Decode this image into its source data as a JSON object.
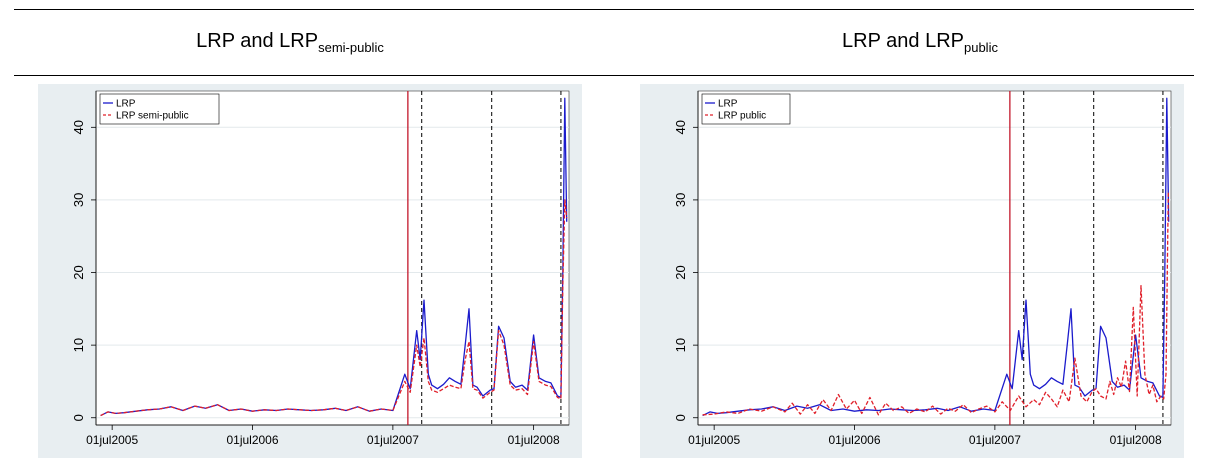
{
  "colors": {
    "frame_bg": "#e8eef1",
    "plot_bg": "#ffffff",
    "lrp": "#1b1bcc",
    "second": "#e0202a",
    "event_solid": "#c2182b",
    "event_dashed": "#000000"
  },
  "panels": [
    {
      "title_main": "LRP and LRP",
      "title_sub": "semi-public"
    },
    {
      "title_main": "LRP and LRP",
      "title_sub": "public"
    }
  ],
  "chart_data": [
    {
      "type": "line",
      "title": "LRP and LRP semi-public",
      "xlabel": "",
      "ylabel": "",
      "x_ticks": [
        "01jul2005",
        "01jul2006",
        "01jul2007",
        "01jul2008"
      ],
      "y_ticks": [
        0,
        10,
        20,
        30,
        40
      ],
      "xlim": [
        "2005-05-20",
        "2008-10-01"
      ],
      "ylim": [
        -1,
        45
      ],
      "grid": true,
      "legend_position": "top-left",
      "event_lines": [
        {
          "date": "2007-08-09",
          "style": "solid"
        },
        {
          "date": "2007-09-14",
          "style": "dashed"
        },
        {
          "date": "2008-03-14",
          "style": "dashed"
        },
        {
          "date": "2008-09-10",
          "style": "dashed"
        }
      ],
      "series": [
        {
          "name": "LRP",
          "style": "solid",
          "x": [
            "2005-06-01",
            "2005-06-20",
            "2005-07-10",
            "2005-08-01",
            "2005-09-01",
            "2005-10-01",
            "2005-11-01",
            "2005-12-01",
            "2006-01-01",
            "2006-02-01",
            "2006-03-01",
            "2006-04-01",
            "2006-05-01",
            "2006-06-01",
            "2006-07-01",
            "2006-08-01",
            "2006-09-01",
            "2006-10-01",
            "2006-11-01",
            "2006-12-01",
            "2007-01-01",
            "2007-02-01",
            "2007-03-01",
            "2007-04-01",
            "2007-05-01",
            "2007-06-01",
            "2007-07-01",
            "2007-08-01",
            "2007-08-15",
            "2007-09-01",
            "2007-09-10",
            "2007-09-20",
            "2007-10-01",
            "2007-10-10",
            "2007-10-25",
            "2007-11-10",
            "2007-11-25",
            "2007-12-10",
            "2007-12-25",
            "2008-01-05",
            "2008-01-15",
            "2008-01-25",
            "2008-02-05",
            "2008-02-20",
            "2008-03-10",
            "2008-03-20",
            "2008-04-01",
            "2008-04-15",
            "2008-05-01",
            "2008-05-15",
            "2008-06-01",
            "2008-06-15",
            "2008-07-01",
            "2008-07-15",
            "2008-08-01",
            "2008-08-15",
            "2008-09-01",
            "2008-09-10",
            "2008-09-15",
            "2008-09-20",
            "2008-09-25"
          ],
          "values": [
            0.3,
            0.8,
            0.6,
            0.7,
            0.9,
            1.1,
            1.2,
            1.5,
            1.0,
            1.6,
            1.3,
            1.8,
            1.0,
            1.2,
            0.9,
            1.1,
            1.0,
            1.2,
            1.1,
            1.0,
            1.1,
            1.3,
            1.0,
            1.5,
            0.9,
            1.2,
            1.0,
            6.0,
            4.0,
            12.0,
            8.0,
            16.2,
            6.0,
            4.5,
            4.0,
            4.6,
            5.5,
            5.0,
            4.6,
            10.0,
            15.0,
            4.5,
            4.2,
            3.0,
            3.8,
            4.0,
            12.6,
            11.0,
            5.0,
            4.2,
            4.5,
            3.8,
            11.4,
            5.5,
            5.0,
            4.8,
            3.0,
            2.8,
            20.0,
            44.0,
            27.0
          ]
        },
        {
          "name": "LRP semi-public",
          "style": "dashed",
          "x": [
            "2005-06-01",
            "2005-06-20",
            "2005-07-10",
            "2005-08-01",
            "2005-09-01",
            "2005-10-01",
            "2005-11-01",
            "2005-12-01",
            "2006-01-01",
            "2006-02-01",
            "2006-03-01",
            "2006-04-01",
            "2006-05-01",
            "2006-06-01",
            "2006-07-01",
            "2006-08-01",
            "2006-09-01",
            "2006-10-01",
            "2006-11-01",
            "2006-12-01",
            "2007-01-01",
            "2007-02-01",
            "2007-03-01",
            "2007-04-01",
            "2007-05-01",
            "2007-06-01",
            "2007-07-01",
            "2007-08-01",
            "2007-08-15",
            "2007-09-01",
            "2007-09-10",
            "2007-09-20",
            "2007-10-01",
            "2007-10-10",
            "2007-10-25",
            "2007-11-10",
            "2007-11-25",
            "2007-12-10",
            "2007-12-25",
            "2008-01-05",
            "2008-01-15",
            "2008-01-25",
            "2008-02-05",
            "2008-02-20",
            "2008-03-10",
            "2008-03-20",
            "2008-04-01",
            "2008-04-15",
            "2008-05-01",
            "2008-05-15",
            "2008-06-01",
            "2008-06-15",
            "2008-07-01",
            "2008-07-15",
            "2008-08-01",
            "2008-08-15",
            "2008-09-01",
            "2008-09-10",
            "2008-09-15",
            "2008-09-20",
            "2008-09-25"
          ],
          "values": [
            0.3,
            0.8,
            0.6,
            0.7,
            0.9,
            1.1,
            1.2,
            1.5,
            1.0,
            1.6,
            1.3,
            1.8,
            1.0,
            1.2,
            0.9,
            1.1,
            1.0,
            1.2,
            1.1,
            1.0,
            1.1,
            1.3,
            1.0,
            1.5,
            0.9,
            1.2,
            1.0,
            5.0,
            3.5,
            10.0,
            7.0,
            11.0,
            5.0,
            3.8,
            3.5,
            4.0,
            4.5,
            4.2,
            4.0,
            8.0,
            10.5,
            4.0,
            3.8,
            2.7,
            3.5,
            3.8,
            12.0,
            10.0,
            4.5,
            3.8,
            4.0,
            3.2,
            10.5,
            5.0,
            4.5,
            4.3,
            2.8,
            2.6,
            18.0,
            30.0,
            27.5
          ]
        }
      ]
    },
    {
      "type": "line",
      "title": "LRP and LRP public",
      "xlabel": "",
      "ylabel": "",
      "x_ticks": [
        "01jul2005",
        "01jul2006",
        "01jul2007",
        "01jul2008"
      ],
      "y_ticks": [
        0,
        10,
        20,
        30,
        40
      ],
      "xlim": [
        "2005-05-20",
        "2008-10-01"
      ],
      "ylim": [
        -1,
        45
      ],
      "grid": true,
      "legend_position": "top-left",
      "event_lines": [
        {
          "date": "2007-08-09",
          "style": "solid"
        },
        {
          "date": "2007-09-14",
          "style": "dashed"
        },
        {
          "date": "2008-03-14",
          "style": "dashed"
        },
        {
          "date": "2008-09-10",
          "style": "dashed"
        }
      ],
      "series": [
        {
          "name": "LRP",
          "style": "solid",
          "x": [
            "2005-06-01",
            "2005-06-20",
            "2005-07-10",
            "2005-08-01",
            "2005-09-01",
            "2005-10-01",
            "2005-11-01",
            "2005-12-01",
            "2006-01-01",
            "2006-02-01",
            "2006-03-01",
            "2006-04-01",
            "2006-05-01",
            "2006-06-01",
            "2006-07-01",
            "2006-08-01",
            "2006-09-01",
            "2006-10-01",
            "2006-11-01",
            "2006-12-01",
            "2007-01-01",
            "2007-02-01",
            "2007-03-01",
            "2007-04-01",
            "2007-05-01",
            "2007-06-01",
            "2007-07-01",
            "2007-08-01",
            "2007-08-15",
            "2007-09-01",
            "2007-09-10",
            "2007-09-20",
            "2007-10-01",
            "2007-10-10",
            "2007-10-25",
            "2007-11-10",
            "2007-11-25",
            "2007-12-10",
            "2007-12-25",
            "2008-01-05",
            "2008-01-15",
            "2008-01-25",
            "2008-02-05",
            "2008-02-20",
            "2008-03-10",
            "2008-03-20",
            "2008-04-01",
            "2008-04-15",
            "2008-05-01",
            "2008-05-15",
            "2008-06-01",
            "2008-06-15",
            "2008-07-01",
            "2008-07-15",
            "2008-08-01",
            "2008-08-15",
            "2008-09-01",
            "2008-09-10",
            "2008-09-15",
            "2008-09-20",
            "2008-09-25"
          ],
          "values": [
            0.3,
            0.8,
            0.6,
            0.7,
            0.9,
            1.1,
            1.2,
            1.5,
            1.0,
            1.6,
            1.3,
            1.8,
            1.0,
            1.2,
            0.9,
            1.1,
            1.0,
            1.2,
            1.1,
            1.0,
            1.1,
            1.3,
            1.0,
            1.5,
            0.9,
            1.2,
            1.0,
            6.0,
            4.0,
            12.0,
            8.0,
            16.2,
            6.0,
            4.5,
            4.0,
            4.6,
            5.5,
            5.0,
            4.6,
            10.0,
            15.0,
            4.5,
            4.2,
            3.0,
            3.8,
            4.0,
            12.6,
            11.0,
            5.0,
            4.2,
            4.5,
            3.8,
            11.4,
            5.5,
            5.0,
            4.8,
            3.0,
            2.8,
            20.0,
            44.0,
            27.0
          ]
        },
        {
          "name": "LRP public",
          "style": "dashed",
          "x": [
            "2005-06-01",
            "2005-07-01",
            "2005-08-01",
            "2005-09-01",
            "2005-10-01",
            "2005-11-01",
            "2005-12-01",
            "2006-01-01",
            "2006-01-20",
            "2006-02-10",
            "2006-03-01",
            "2006-03-20",
            "2006-04-10",
            "2006-05-01",
            "2006-05-20",
            "2006-06-10",
            "2006-07-01",
            "2006-07-20",
            "2006-08-10",
            "2006-09-01",
            "2006-09-20",
            "2006-10-10",
            "2006-11-01",
            "2006-11-20",
            "2006-12-10",
            "2007-01-01",
            "2007-01-20",
            "2007-02-10",
            "2007-03-01",
            "2007-03-20",
            "2007-04-10",
            "2007-05-01",
            "2007-05-20",
            "2007-06-10",
            "2007-07-01",
            "2007-07-20",
            "2007-08-10",
            "2007-09-01",
            "2007-09-20",
            "2007-10-10",
            "2007-10-25",
            "2007-11-10",
            "2007-11-25",
            "2007-12-10",
            "2007-12-25",
            "2008-01-10",
            "2008-01-25",
            "2008-02-10",
            "2008-02-25",
            "2008-03-10",
            "2008-03-20",
            "2008-04-01",
            "2008-04-15",
            "2008-04-25",
            "2008-05-05",
            "2008-05-15",
            "2008-05-25",
            "2008-06-05",
            "2008-06-15",
            "2008-06-25",
            "2008-07-05",
            "2008-07-15",
            "2008-07-25",
            "2008-08-05",
            "2008-08-15",
            "2008-08-25",
            "2008-09-05",
            "2008-09-12",
            "2008-09-18",
            "2008-09-24"
          ],
          "values": [
            0.4,
            0.5,
            0.8,
            0.6,
            1.2,
            0.9,
            1.5,
            0.8,
            2.0,
            0.5,
            1.8,
            0.6,
            2.5,
            1.0,
            3.2,
            1.2,
            2.4,
            0.6,
            2.8,
            0.4,
            2.0,
            1.0,
            1.5,
            0.6,
            1.2,
            0.8,
            1.6,
            0.5,
            1.3,
            0.9,
            1.8,
            0.7,
            1.2,
            1.6,
            0.8,
            2.2,
            1.0,
            3.0,
            1.5,
            2.5,
            1.8,
            3.5,
            2.6,
            1.5,
            3.8,
            2.2,
            8.2,
            3.0,
            2.2,
            3.6,
            4.0,
            3.0,
            2.6,
            5.0,
            3.2,
            5.5,
            4.2,
            7.8,
            3.6,
            15.2,
            3.0,
            18.2,
            6.0,
            3.2,
            4.5,
            2.2,
            3.0,
            2.6,
            6.0,
            31.0
          ]
        }
      ]
    }
  ]
}
